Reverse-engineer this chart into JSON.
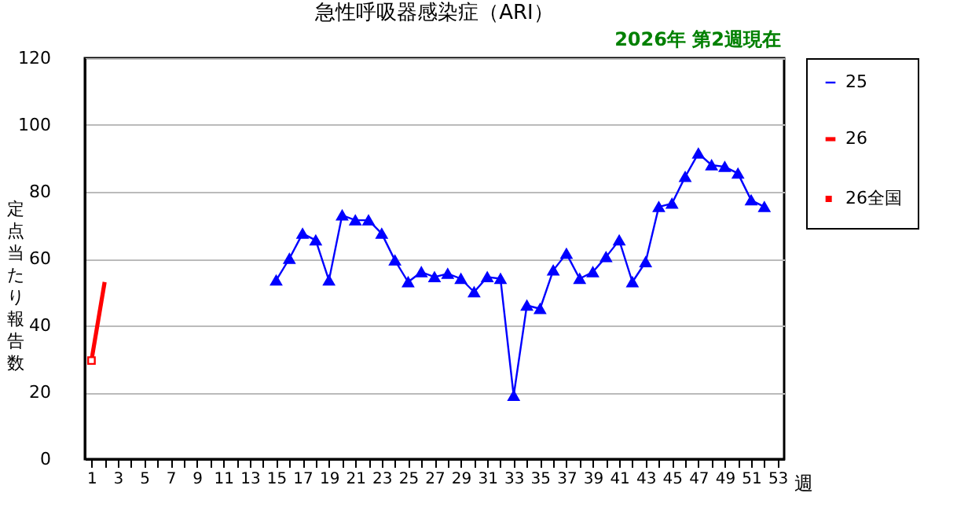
{
  "chart_data": {
    "type": "line",
    "title": "急性呼吸器感染症（ARI）",
    "subtitle": "2026年 第2週現在",
    "xlabel": "週",
    "ylabel": "定点当たり報告数",
    "xlim": [
      0.5,
      53.5
    ],
    "xticks": [
      1,
      {
        "value": 2,
        "label": null
      },
      3,
      {
        "value": 4,
        "label": null
      },
      5,
      {
        "value": 6,
        "label": null
      },
      7,
      {
        "value": 8,
        "label": null
      },
      9,
      {
        "value": 10,
        "label": null
      },
      11,
      {
        "value": 12,
        "label": null
      },
      13,
      {
        "value": 14,
        "label": null
      },
      15,
      {
        "value": 16,
        "label": null
      },
      17,
      {
        "value": 18,
        "label": null
      },
      19,
      {
        "value": 20,
        "label": null
      },
      21,
      {
        "value": 22,
        "label": null
      },
      23,
      {
        "value": 24,
        "label": null
      },
      25,
      {
        "value": 26,
        "label": null
      },
      27,
      {
        "value": 28,
        "label": null
      },
      29,
      {
        "value": 30,
        "label": null
      },
      31,
      {
        "value": 32,
        "label": null
      },
      33,
      {
        "value": 34,
        "label": null
      },
      35,
      {
        "value": 36,
        "label": null
      },
      37,
      {
        "value": 38,
        "label": null
      },
      39,
      {
        "value": 40,
        "label": null
      },
      41,
      {
        "value": 42,
        "label": null
      },
      43,
      {
        "value": 44,
        "label": null
      },
      45,
      {
        "value": 46,
        "label": null
      },
      47,
      {
        "value": 48,
        "label": null
      },
      49,
      {
        "value": 50,
        "label": null
      },
      51,
      {
        "value": 52,
        "label": null
      },
      53
    ],
    "ylim": [
      0,
      120
    ],
    "yticks": [
      0,
      20,
      40,
      60,
      80,
      100,
      120
    ],
    "grid": "y",
    "legend": "right",
    "series": [
      {
        "name": "25",
        "color": "#0000ff",
        "marker": "triangle",
        "line_style": "solid",
        "x": [
          15,
          16,
          17,
          18,
          19,
          20,
          21,
          22,
          23,
          24,
          25,
          26,
          27,
          28,
          29,
          30,
          31,
          32,
          33,
          34,
          35,
          36,
          37,
          38,
          39,
          40,
          41,
          42,
          43,
          44,
          45,
          46,
          47,
          48,
          49,
          50,
          51,
          52
        ],
        "values": [
          53.5,
          60,
          67.5,
          65.5,
          53.5,
          73,
          71.5,
          71.5,
          67.5,
          59.5,
          53,
          56,
          54.5,
          55.5,
          54,
          50,
          54.5,
          54,
          19,
          46,
          45,
          56.5,
          61.5,
          54,
          56,
          60.5,
          65.5,
          53,
          59,
          75.5,
          76.5,
          84.5,
          91.5,
          88,
          87.5,
          85.5,
          77.5,
          75.5
        ]
      },
      {
        "name": "26",
        "color": "#ff0000",
        "marker": "none",
        "line_style": "solid",
        "x": [
          1,
          2
        ],
        "values": [
          29.5,
          53
        ]
      },
      {
        "name": "26全国",
        "color": "#ff0000",
        "marker": "square",
        "line_style": "dashed",
        "x": [
          1
        ],
        "values": [
          29.5
        ]
      }
    ]
  }
}
